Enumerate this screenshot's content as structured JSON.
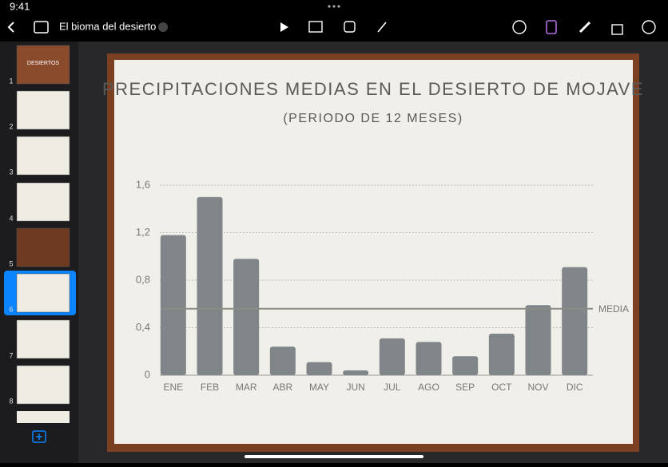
{
  "status_bar": {
    "time": "9:41"
  },
  "toolbar": {
    "document_title": "El bioma del desierto"
  },
  "navigator": {
    "slide_numbers": [
      "1",
      "2",
      "3",
      "4",
      "5",
      "6",
      "7",
      "8"
    ],
    "first_slide_title": "DESIERTOS"
  },
  "chart_data": {
    "type": "bar",
    "title": "PRECIPITACIONES MEDIAS EN EL DESIERTO DE MOJAVE",
    "subtitle": "(PERIODO DE 12 MESES)",
    "categories": [
      "ENE",
      "FEB",
      "MAR",
      "ABR",
      "MAY",
      "JUN",
      "JUL",
      "AGO",
      "SEP",
      "OCT",
      "NOV",
      "DIC"
    ],
    "values": [
      1.18,
      1.5,
      0.98,
      0.24,
      0.11,
      0.04,
      0.31,
      0.28,
      0.16,
      0.35,
      0.59,
      0.91
    ],
    "color": "#7f8588",
    "ylim": [
      0,
      1.6
    ],
    "yticks": [
      0,
      {
        "value": 0.4,
        "label": "0,4"
      },
      {
        "value": 0.8,
        "label": "0,8"
      },
      {
        "value": 1.2,
        "label": "1,2"
      },
      {
        "value": 1.6,
        "label": "1,6"
      }
    ],
    "grid": true,
    "reference_line": {
      "value": 0.56,
      "label": "MEDIA",
      "color": "#8a8d86"
    }
  }
}
